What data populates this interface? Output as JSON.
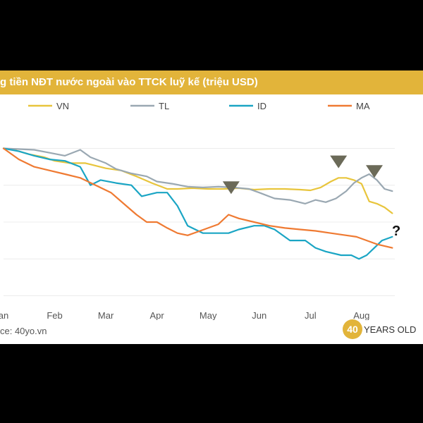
{
  "colors": {
    "title_bar": "#e2b43a",
    "VN": "#e8c53c",
    "TL": "#9aa8b2",
    "ID": "#1aa5c4",
    "MA": "#ef7a32",
    "marker": "#6b6a58"
  },
  "title": "g tiền NĐT nước ngoài vào TTCK luỹ kế (triệu USD)",
  "source": "ce: 40yo.vn",
  "brand": {
    "badge": "40",
    "text": "YEARS OLD"
  },
  "annotation": "?",
  "chart_data": {
    "type": "line",
    "title": "g tiền NĐT nước ngoài vào TTCK luỹ kế (triệu USD)",
    "x_tick_labels": [
      "an",
      "Feb",
      "Mar",
      "Apr",
      "May",
      "Jun",
      "Jul",
      "Aug"
    ],
    "x_tick_positions": [
      0,
      1,
      2,
      3,
      4,
      5,
      6,
      7
    ],
    "xlim": [
      0,
      7.65
    ],
    "ylim": [
      -210,
      10
    ],
    "y_tick_values": [
      -200,
      -150,
      -100,
      -50,
      0
    ],
    "y_tick_labels_visible": false,
    "grid": true,
    "legend": "top",
    "series": [
      {
        "name": "VN",
        "x": [
          0,
          0.2,
          0.5,
          0.8,
          1.0,
          1.3,
          1.6,
          2.0,
          2.3,
          2.6,
          2.9,
          3.2,
          3.4,
          3.7,
          4.0,
          4.3,
          4.6,
          4.9,
          5.2,
          5.5,
          5.8,
          6.0,
          6.2,
          6.4,
          6.55,
          6.7,
          6.85,
          7.0,
          7.15,
          7.3,
          7.45,
          7.6
        ],
        "y": [
          0,
          -2,
          -8,
          -12,
          -17,
          -20,
          -20,
          -27,
          -30,
          -38,
          -47,
          -55,
          -55,
          -54,
          -55,
          -55,
          -54,
          -56,
          -55,
          -55,
          -56,
          -57,
          -53,
          -45,
          -40,
          -40,
          -43,
          -48,
          -72,
          -75,
          -80,
          -88
        ]
      },
      {
        "name": "TL",
        "x": [
          0,
          0.3,
          0.6,
          0.9,
          1.2,
          1.5,
          1.7,
          2.0,
          2.2,
          2.5,
          2.8,
          3.0,
          3.3,
          3.6,
          3.9,
          4.2,
          4.5,
          4.8,
          5.0,
          5.3,
          5.6,
          5.9,
          6.1,
          6.3,
          6.5,
          6.7,
          6.85,
          7.0,
          7.15,
          7.3,
          7.45,
          7.6
        ],
        "y": [
          0,
          -1,
          -2,
          -6,
          -10,
          -2,
          -12,
          -20,
          -28,
          -34,
          -38,
          -45,
          -48,
          -52,
          -53,
          -52,
          -53,
          -55,
          -60,
          -68,
          -70,
          -75,
          -70,
          -73,
          -68,
          -58,
          -47,
          -40,
          -35,
          -43,
          -55,
          -58
        ]
      },
      {
        "name": "ID",
        "x": [
          0,
          0.3,
          0.6,
          0.9,
          1.2,
          1.5,
          1.7,
          1.9,
          2.2,
          2.5,
          2.7,
          3.0,
          3.2,
          3.4,
          3.6,
          3.9,
          4.2,
          4.4,
          4.6,
          4.9,
          5.1,
          5.3,
          5.6,
          5.9,
          6.1,
          6.3,
          6.6,
          6.8,
          6.95,
          7.1,
          7.25,
          7.4,
          7.6
        ],
        "y": [
          0,
          -4,
          -10,
          -15,
          -17,
          -25,
          -50,
          -43,
          -47,
          -50,
          -65,
          -60,
          -60,
          -78,
          -105,
          -115,
          -115,
          -115,
          -110,
          -105,
          -105,
          -110,
          -125,
          -125,
          -135,
          -140,
          -145,
          -145,
          -150,
          -145,
          -135,
          -125,
          -120
        ]
      },
      {
        "name": "MA",
        "x": [
          0,
          0.3,
          0.6,
          0.9,
          1.2,
          1.5,
          1.8,
          2.1,
          2.4,
          2.6,
          2.8,
          3.0,
          3.2,
          3.4,
          3.6,
          3.8,
          4.0,
          4.2,
          4.4,
          4.6,
          4.9,
          5.2,
          5.5,
          5.8,
          6.1,
          6.4,
          6.7,
          6.9,
          7.1,
          7.3,
          7.6
        ],
        "y": [
          0,
          -15,
          -25,
          -30,
          -35,
          -40,
          -50,
          -60,
          -78,
          -90,
          -100,
          -100,
          -108,
          -115,
          -118,
          -113,
          -108,
          -103,
          -90,
          -95,
          -100,
          -105,
          -108,
          -110,
          -112,
          -115,
          -118,
          -120,
          -125,
          -130,
          -135
        ]
      }
    ],
    "annotations": [
      {
        "shape": "down-triangle",
        "x": 4.45,
        "y": -62
      },
      {
        "shape": "down-triangle",
        "x": 6.55,
        "y": -27
      },
      {
        "shape": "down-triangle",
        "x": 7.25,
        "y": -40
      },
      {
        "text": "?",
        "x": 7.65,
        "y": -118
      }
    ]
  }
}
